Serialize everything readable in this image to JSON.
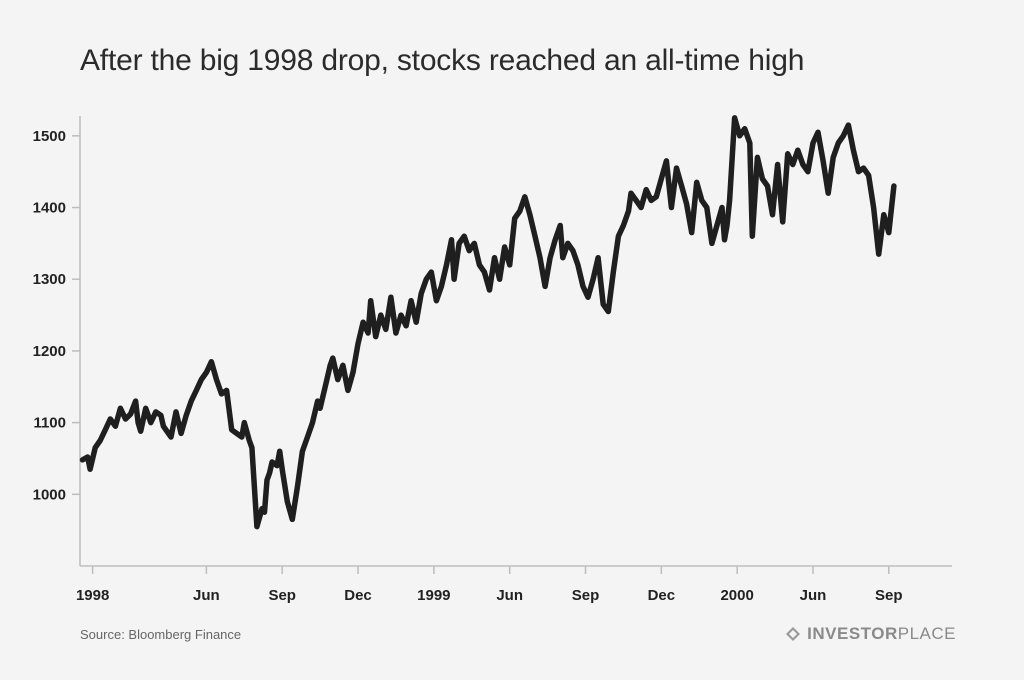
{
  "title": "After the big 1998 drop, stocks reached an all-time high",
  "source": "Source: Bloomberg Finance",
  "logo": {
    "bold": "INVESTOR",
    "light": "PLACE",
    "icon": "investorplace-logo-icon"
  },
  "colors": {
    "line": "#1f1f1f",
    "axis": "#bdbdbd",
    "background": "#f4f4f4"
  },
  "chart_data": {
    "type": "line",
    "title": "After the big 1998 drop, stocks reached an all-time high",
    "xlabel": "",
    "ylabel": "",
    "ylim": [
      900,
      1550
    ],
    "xlim": [
      0,
      34.5
    ],
    "grid": false,
    "y_ticks": [
      1000,
      1100,
      1200,
      1300,
      1400,
      1500
    ],
    "x_ticks": [
      {
        "label": "1998",
        "x": 0.5
      },
      {
        "label": "Jun",
        "x": 5
      },
      {
        "label": "Sep",
        "x": 8
      },
      {
        "label": "Dec",
        "x": 11
      },
      {
        "label": "1999",
        "x": 14
      },
      {
        "label": "Jun",
        "x": 17
      },
      {
        "label": "Sep",
        "x": 20
      },
      {
        "label": "Dec",
        "x": 23
      },
      {
        "label": "2000",
        "x": 26
      },
      {
        "label": "Jun",
        "x": 29
      },
      {
        "label": "Sep",
        "x": 32
      }
    ],
    "series": [
      {
        "points": [
          [
            0.1,
            1048
          ],
          [
            0.3,
            1052
          ],
          [
            0.4,
            1035
          ],
          [
            0.6,
            1065
          ],
          [
            0.8,
            1075
          ],
          [
            1.0,
            1090
          ],
          [
            1.2,
            1105
          ],
          [
            1.4,
            1095
          ],
          [
            1.6,
            1120
          ],
          [
            1.8,
            1105
          ],
          [
            2.0,
            1112
          ],
          [
            2.2,
            1130
          ],
          [
            2.3,
            1100
          ],
          [
            2.4,
            1088
          ],
          [
            2.6,
            1120
          ],
          [
            2.8,
            1100
          ],
          [
            3.0,
            1115
          ],
          [
            3.2,
            1110
          ],
          [
            3.3,
            1095
          ],
          [
            3.4,
            1090
          ],
          [
            3.6,
            1080
          ],
          [
            3.8,
            1115
          ],
          [
            4.0,
            1085
          ],
          [
            4.2,
            1110
          ],
          [
            4.4,
            1130
          ],
          [
            4.6,
            1145
          ],
          [
            4.8,
            1160
          ],
          [
            5.0,
            1170
          ],
          [
            5.2,
            1185
          ],
          [
            5.4,
            1160
          ],
          [
            5.6,
            1140
          ],
          [
            5.8,
            1145
          ],
          [
            6.0,
            1090
          ],
          [
            6.2,
            1085
          ],
          [
            6.4,
            1080
          ],
          [
            6.5,
            1100
          ],
          [
            6.7,
            1075
          ],
          [
            6.8,
            1065
          ],
          [
            7.0,
            955
          ],
          [
            7.2,
            980
          ],
          [
            7.3,
            975
          ],
          [
            7.4,
            1020
          ],
          [
            7.5,
            1030
          ],
          [
            7.6,
            1045
          ],
          [
            7.8,
            1040
          ],
          [
            7.9,
            1060
          ],
          [
            8.0,
            1035
          ],
          [
            8.2,
            990
          ],
          [
            8.4,
            965
          ],
          [
            8.6,
            1010
          ],
          [
            8.8,
            1060
          ],
          [
            9.0,
            1080
          ],
          [
            9.2,
            1100
          ],
          [
            9.4,
            1130
          ],
          [
            9.5,
            1120
          ],
          [
            9.7,
            1150
          ],
          [
            9.9,
            1180
          ],
          [
            10.0,
            1190
          ],
          [
            10.2,
            1160
          ],
          [
            10.4,
            1180
          ],
          [
            10.6,
            1145
          ],
          [
            10.8,
            1170
          ],
          [
            11.0,
            1210
          ],
          [
            11.2,
            1240
          ],
          [
            11.4,
            1225
          ],
          [
            11.5,
            1270
          ],
          [
            11.7,
            1220
          ],
          [
            11.9,
            1250
          ],
          [
            12.1,
            1230
          ],
          [
            12.3,
            1275
          ],
          [
            12.5,
            1225
          ],
          [
            12.7,
            1250
          ],
          [
            12.9,
            1235
          ],
          [
            13.1,
            1270
          ],
          [
            13.3,
            1240
          ],
          [
            13.5,
            1280
          ],
          [
            13.7,
            1300
          ],
          [
            13.9,
            1310
          ],
          [
            14.1,
            1270
          ],
          [
            14.3,
            1290
          ],
          [
            14.5,
            1320
          ],
          [
            14.7,
            1355
          ],
          [
            14.8,
            1300
          ],
          [
            15.0,
            1350
          ],
          [
            15.2,
            1360
          ],
          [
            15.4,
            1340
          ],
          [
            15.6,
            1350
          ],
          [
            15.8,
            1320
          ],
          [
            16.0,
            1310
          ],
          [
            16.2,
            1285
          ],
          [
            16.4,
            1330
          ],
          [
            16.6,
            1300
          ],
          [
            16.8,
            1345
          ],
          [
            17.0,
            1320
          ],
          [
            17.2,
            1385
          ],
          [
            17.4,
            1395
          ],
          [
            17.6,
            1415
          ],
          [
            17.8,
            1390
          ],
          [
            18.0,
            1360
          ],
          [
            18.2,
            1330
          ],
          [
            18.4,
            1290
          ],
          [
            18.6,
            1330
          ],
          [
            18.8,
            1355
          ],
          [
            19.0,
            1375
          ],
          [
            19.1,
            1330
          ],
          [
            19.3,
            1350
          ],
          [
            19.5,
            1340
          ],
          [
            19.7,
            1320
          ],
          [
            19.9,
            1290
          ],
          [
            20.1,
            1275
          ],
          [
            20.3,
            1300
          ],
          [
            20.5,
            1330
          ],
          [
            20.7,
            1265
          ],
          [
            20.9,
            1255
          ],
          [
            21.1,
            1310
          ],
          [
            21.3,
            1360
          ],
          [
            21.5,
            1375
          ],
          [
            21.7,
            1395
          ],
          [
            21.8,
            1420
          ],
          [
            22.0,
            1410
          ],
          [
            22.2,
            1400
          ],
          [
            22.4,
            1425
          ],
          [
            22.6,
            1410
          ],
          [
            22.8,
            1415
          ],
          [
            23.0,
            1440
          ],
          [
            23.2,
            1465
          ],
          [
            23.4,
            1400
          ],
          [
            23.6,
            1455
          ],
          [
            23.8,
            1430
          ],
          [
            24.0,
            1405
          ],
          [
            24.2,
            1365
          ],
          [
            24.4,
            1435
          ],
          [
            24.6,
            1410
          ],
          [
            24.8,
            1400
          ],
          [
            25.0,
            1350
          ],
          [
            25.2,
            1375
          ],
          [
            25.4,
            1400
          ],
          [
            25.5,
            1355
          ],
          [
            25.6,
            1375
          ],
          [
            25.7,
            1410
          ],
          [
            25.9,
            1525
          ],
          [
            26.1,
            1500
          ],
          [
            26.3,
            1510
          ],
          [
            26.5,
            1490
          ],
          [
            26.6,
            1360
          ],
          [
            26.8,
            1470
          ],
          [
            27.0,
            1440
          ],
          [
            27.2,
            1430
          ],
          [
            27.4,
            1390
          ],
          [
            27.6,
            1460
          ],
          [
            27.8,
            1380
          ],
          [
            28.0,
            1475
          ],
          [
            28.2,
            1460
          ],
          [
            28.4,
            1480
          ],
          [
            28.6,
            1460
          ],
          [
            28.8,
            1450
          ],
          [
            29.0,
            1490
          ],
          [
            29.2,
            1505
          ],
          [
            29.4,
            1465
          ],
          [
            29.6,
            1420
          ],
          [
            29.8,
            1470
          ],
          [
            30.0,
            1490
          ],
          [
            30.2,
            1500
          ],
          [
            30.4,
            1515
          ],
          [
            30.6,
            1480
          ],
          [
            30.8,
            1450
          ],
          [
            31.0,
            1455
          ],
          [
            31.2,
            1445
          ],
          [
            31.4,
            1400
          ],
          [
            31.6,
            1335
          ],
          [
            31.8,
            1390
          ],
          [
            32.0,
            1365
          ],
          [
            32.2,
            1430
          ]
        ]
      }
    ]
  }
}
